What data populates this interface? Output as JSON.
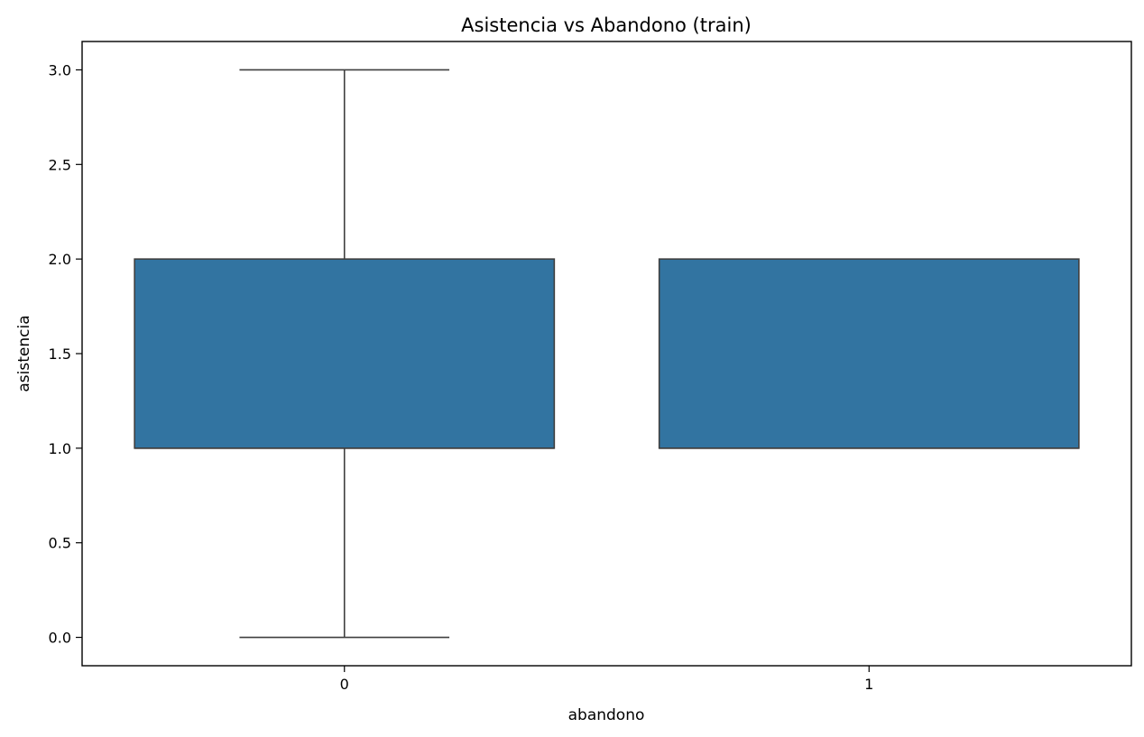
{
  "chart_data": {
    "type": "box",
    "title": "Asistencia vs Abandono (train)",
    "xlabel": "abandono",
    "ylabel": "asistencia",
    "categories": [
      "0",
      "1"
    ],
    "ylim": [
      -0.15,
      3.15
    ],
    "yticks": [
      0.0,
      0.5,
      1.0,
      1.5,
      2.0,
      2.5,
      3.0
    ],
    "ytick_labels": [
      "0.0",
      "0.5",
      "1.0",
      "1.5",
      "2.0",
      "2.5",
      "3.0"
    ],
    "grid": false,
    "legend": "none",
    "boxes": [
      {
        "category": "0",
        "whisker_low": 0.0,
        "q1": 1.0,
        "median": 1.0,
        "q3": 2.0,
        "whisker_high": 3.0
      },
      {
        "category": "1",
        "whisker_low": 1.0,
        "q1": 1.0,
        "median": 1.0,
        "q3": 2.0,
        "whisker_high": 2.0
      }
    ],
    "colors": {
      "box_fill": "#3274a1",
      "box_edge": "#3f3f3f",
      "axes": "#000000"
    }
  }
}
